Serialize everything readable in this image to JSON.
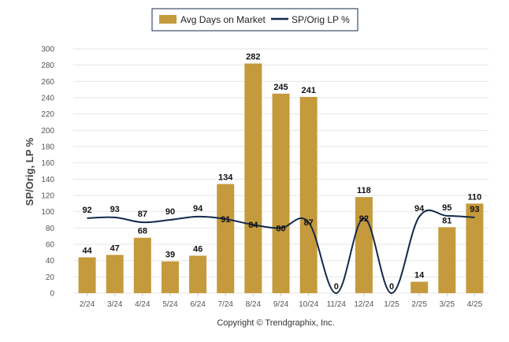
{
  "chart_data": {
    "type": "bar",
    "categories": [
      "2/24",
      "3/24",
      "4/24",
      "5/24",
      "6/24",
      "7/24",
      "8/24",
      "9/24",
      "10/24",
      "11/24",
      "12/24",
      "1/25",
      "2/25",
      "3/25",
      "4/25"
    ],
    "series": [
      {
        "name": "Avg Days on Market",
        "type": "bar",
        "color": "#c49a3c",
        "values": [
          44,
          47,
          68,
          39,
          46,
          134,
          282,
          245,
          241,
          0,
          118,
          0,
          14,
          81,
          110
        ]
      },
      {
        "name": "SP/Orig LP %",
        "type": "line",
        "color": "#13294b",
        "values": [
          92,
          93,
          87,
          90,
          94,
          91,
          84,
          80,
          87,
          0,
          92,
          0,
          94,
          95,
          93
        ]
      }
    ],
    "ylabel": "SP/Orig, LP %",
    "ylim": [
      0,
      300
    ],
    "yticks": [
      0,
      20,
      40,
      60,
      80,
      100,
      120,
      140,
      160,
      180,
      200,
      220,
      240,
      260,
      280,
      300
    ],
    "grid": true,
    "legend": "top-center",
    "copyright": "Copyright © Trendgraphix, Inc."
  }
}
